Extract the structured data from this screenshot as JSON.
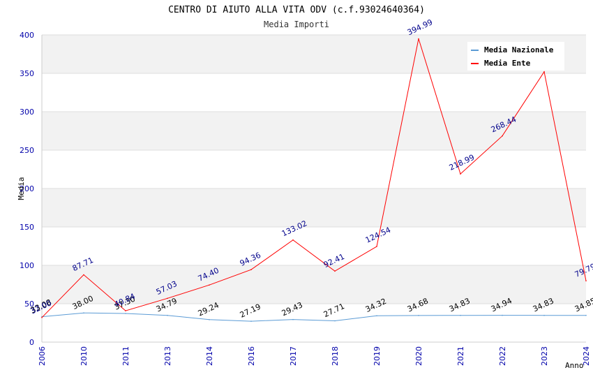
{
  "chart_data": {
    "type": "line",
    "title": "CENTRO DI AIUTO ALLA VITA ODV (c.f.93024640364)",
    "subtitle": "Media Importi",
    "xlabel": "Anno",
    "ylabel": "Media",
    "categories": [
      "2006",
      "2010",
      "2011",
      "2013",
      "2014",
      "2016",
      "2017",
      "2018",
      "2019",
      "2020",
      "2021",
      "2022",
      "2023",
      "2024"
    ],
    "ylim": [
      0,
      400
    ],
    "yticks": [
      0,
      50,
      100,
      150,
      200,
      250,
      300,
      350,
      400
    ],
    "grid": true,
    "legend_position": "top-right",
    "series": [
      {
        "name": "Media Nazionale",
        "color": "#5b9bd5",
        "label_color": "#000000",
        "values": [
          33.08,
          38.0,
          37.3,
          34.79,
          29.24,
          27.19,
          29.43,
          27.71,
          34.32,
          34.68,
          34.83,
          34.94,
          34.83,
          34.85
        ],
        "labels": [
          "33.08",
          "38.00",
          "37.30",
          "34.79",
          "29.24",
          "27.19",
          "29.43",
          "27.71",
          "34.32",
          "34.68",
          "34.83",
          "34.94",
          "34.83",
          "34.85"
        ]
      },
      {
        "name": "Media Ente",
        "color": "#ff0000",
        "label_color": "#00008b",
        "values": [
          32.0,
          87.71,
          40.84,
          57.03,
          74.4,
          94.36,
          133.02,
          92.41,
          124.54,
          394.99,
          218.99,
          268.44,
          352.0,
          79.79
        ],
        "labels": [
          "32.00",
          "87.71",
          "40.84",
          "57.03",
          "74.40",
          "94.36",
          "133.02",
          "92.41",
          "124.54",
          "394.99",
          "218.99",
          "268.44",
          "",
          "79.79"
        ]
      }
    ]
  }
}
